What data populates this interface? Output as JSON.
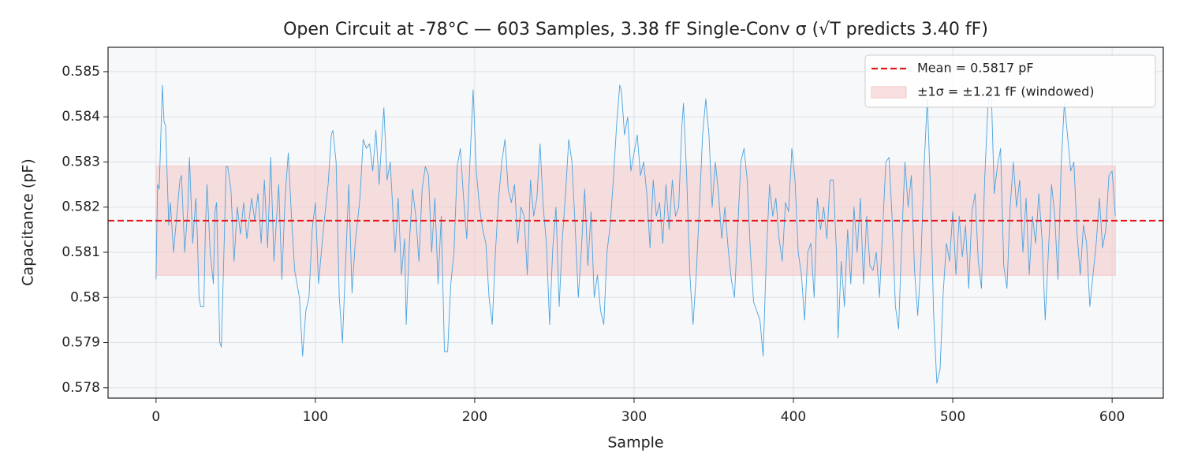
{
  "chart_data": {
    "type": "line",
    "title": "Open Circuit at -78°C — 603 Samples, 3.38 fF Single-Conv σ (√T predicts 3.40 fF)",
    "xlabel": "Sample",
    "ylabel": "Capacitance (pF)",
    "xlim": [
      -30.1,
      632.1
    ],
    "ylim": [
      0.57777,
      0.58554
    ],
    "xticks": [
      0,
      100,
      200,
      300,
      400,
      500,
      600
    ],
    "yticks": [
      0.578,
      0.579,
      0.58,
      0.581,
      0.582,
      0.583,
      0.584,
      0.585
    ],
    "grid": true,
    "legend": "upper right",
    "x": [
      0,
      1,
      2,
      4,
      5,
      6,
      8,
      9,
      11,
      13,
      15,
      16,
      18,
      20,
      21,
      23,
      25,
      26,
      27,
      28,
      30,
      31,
      32,
      34,
      36,
      37,
      38,
      40,
      41,
      43,
      44,
      45,
      47,
      49,
      51,
      53,
      55,
      57,
      60,
      62,
      64,
      66,
      68,
      70,
      72,
      74,
      77,
      79,
      81,
      83,
      85,
      87,
      90,
      92,
      94,
      96,
      98,
      100,
      102,
      105,
      108,
      110,
      111,
      113,
      115,
      117,
      119,
      121,
      123,
      125,
      128,
      130,
      132,
      134,
      136,
      138,
      140,
      142,
      143,
      145,
      147,
      150,
      152,
      154,
      156,
      157,
      159,
      161,
      163,
      165,
      167,
      169,
      171,
      173,
      175,
      177,
      179,
      181,
      183,
      185,
      187,
      189,
      191,
      193,
      195,
      197,
      199,
      201,
      203,
      205,
      207,
      209,
      211,
      213,
      215,
      217,
      219,
      221,
      223,
      225,
      227,
      229,
      231,
      233,
      235,
      237,
      239,
      241,
      243,
      245,
      247,
      249,
      251,
      253,
      255,
      257,
      259,
      261,
      263,
      265,
      267,
      269,
      271,
      273,
      275,
      277,
      279,
      281,
      283,
      285,
      287,
      289,
      291,
      292,
      294,
      296,
      298,
      300,
      302,
      304,
      306,
      308,
      310,
      312,
      314,
      316,
      318,
      320,
      322,
      324,
      326,
      328,
      330,
      331,
      333,
      335,
      337,
      339,
      341,
      343,
      345,
      347,
      349,
      351,
      353,
      355,
      357,
      359,
      361,
      363,
      365,
      367,
      369,
      371,
      373,
      375,
      377,
      379,
      381,
      383,
      385,
      387,
      389,
      391,
      393,
      395,
      397,
      399,
      401,
      403,
      405,
      407,
      409,
      411,
      413,
      415,
      417,
      419,
      421,
      423,
      425,
      427,
      428,
      430,
      432,
      434,
      436,
      438,
      440,
      442,
      444,
      446,
      448,
      450,
      452,
      454,
      456,
      458,
      460,
      462,
      464,
      466,
      468,
      470,
      472,
      474,
      476,
      478,
      480,
      482,
      484,
      486,
      488,
      490,
      492,
      494,
      496,
      498,
      500,
      502,
      504,
      506,
      508,
      510,
      512,
      514,
      516,
      518,
      520,
      522,
      524,
      526,
      528,
      530,
      532,
      534,
      536,
      538,
      540,
      542,
      544,
      546,
      548,
      550,
      552,
      554,
      556,
      558,
      560,
      562,
      564,
      566,
      568,
      570,
      572,
      574,
      576,
      578,
      580,
      582,
      584,
      586,
      588,
      590,
      592,
      594,
      596,
      598,
      600,
      602
    ],
    "series": [
      {
        "color": "#4aa3df",
        "values": [
          0.5804,
          0.5825,
          0.5824,
          0.5847,
          0.5839,
          0.5838,
          0.5816,
          0.5821,
          0.581,
          0.5818,
          0.5826,
          0.5827,
          0.581,
          0.582,
          0.5831,
          0.5812,
          0.5822,
          0.5813,
          0.58,
          0.5798,
          0.5798,
          0.5815,
          0.5825,
          0.581,
          0.5803,
          0.5819,
          0.5821,
          0.579,
          0.5789,
          0.5815,
          0.5829,
          0.5829,
          0.5824,
          0.5808,
          0.582,
          0.5814,
          0.5821,
          0.5813,
          0.5822,
          0.5817,
          0.5823,
          0.5812,
          0.5826,
          0.5811,
          0.5831,
          0.5808,
          0.5825,
          0.5804,
          0.5822,
          0.5832,
          0.5818,
          0.5806,
          0.58,
          0.5787,
          0.5797,
          0.58,
          0.5815,
          0.5821,
          0.5803,
          0.5815,
          0.5825,
          0.5836,
          0.5837,
          0.583,
          0.58,
          0.579,
          0.5808,
          0.5825,
          0.5801,
          0.5812,
          0.5822,
          0.5835,
          0.5833,
          0.5834,
          0.5828,
          0.5837,
          0.5825,
          0.5837,
          0.5842,
          0.5826,
          0.583,
          0.581,
          0.5822,
          0.5805,
          0.5813,
          0.5794,
          0.5812,
          0.5824,
          0.5818,
          0.5808,
          0.5824,
          0.5829,
          0.5827,
          0.581,
          0.5822,
          0.5803,
          0.5818,
          0.5788,
          0.5788,
          0.5803,
          0.581,
          0.5829,
          0.5833,
          0.5822,
          0.5813,
          0.583,
          0.5846,
          0.5828,
          0.582,
          0.5815,
          0.5812,
          0.58,
          0.5794,
          0.581,
          0.5822,
          0.583,
          0.5835,
          0.5824,
          0.5821,
          0.5825,
          0.5812,
          0.582,
          0.5818,
          0.5805,
          0.5826,
          0.5818,
          0.5822,
          0.5834,
          0.582,
          0.5812,
          0.5794,
          0.5811,
          0.582,
          0.5798,
          0.5813,
          0.5823,
          0.5835,
          0.583,
          0.5816,
          0.58,
          0.5811,
          0.5824,
          0.5807,
          0.5819,
          0.58,
          0.5805,
          0.5797,
          0.5794,
          0.581,
          0.5816,
          0.5826,
          0.5838,
          0.5847,
          0.5846,
          0.5836,
          0.584,
          0.5828,
          0.5832,
          0.5836,
          0.5827,
          0.583,
          0.5823,
          0.5811,
          0.5826,
          0.5818,
          0.5821,
          0.5812,
          0.5825,
          0.5815,
          0.5826,
          0.5818,
          0.582,
          0.5838,
          0.5843,
          0.5827,
          0.5805,
          0.5794,
          0.5805,
          0.582,
          0.5836,
          0.5844,
          0.5836,
          0.582,
          0.583,
          0.5823,
          0.5813,
          0.582,
          0.5811,
          0.5804,
          0.58,
          0.5815,
          0.583,
          0.5833,
          0.5826,
          0.581,
          0.5799,
          0.5797,
          0.5795,
          0.5787,
          0.5809,
          0.5825,
          0.5818,
          0.5822,
          0.5813,
          0.5808,
          0.5821,
          0.5819,
          0.5833,
          0.5826,
          0.581,
          0.5805,
          0.5795,
          0.581,
          0.5812,
          0.58,
          0.5822,
          0.5815,
          0.582,
          0.5813,
          0.5826,
          0.5826,
          0.581,
          0.5791,
          0.5808,
          0.5798,
          0.5815,
          0.5803,
          0.582,
          0.581,
          0.5822,
          0.5803,
          0.5818,
          0.5807,
          0.5806,
          0.581,
          0.58,
          0.5815,
          0.583,
          0.5831,
          0.5817,
          0.5798,
          0.5793,
          0.5813,
          0.583,
          0.582,
          0.5827,
          0.5806,
          0.5796,
          0.5808,
          0.5829,
          0.5844,
          0.5824,
          0.5796,
          0.5781,
          0.5784,
          0.5801,
          0.5812,
          0.5808,
          0.5819,
          0.5805,
          0.5818,
          0.5809,
          0.5816,
          0.5802,
          0.5819,
          0.5823,
          0.5808,
          0.5802,
          0.5826,
          0.5842,
          0.5848,
          0.5823,
          0.5829,
          0.5833,
          0.5807,
          0.5802,
          0.582,
          0.583,
          0.582,
          0.5826,
          0.581,
          0.5822,
          0.5805,
          0.5818,
          0.5812,
          0.5823,
          0.5813,
          0.5795,
          0.581,
          0.5825,
          0.5818,
          0.5804,
          0.5829,
          0.5843,
          0.5836,
          0.5828,
          0.583,
          0.5814,
          0.5805,
          0.5816,
          0.5812,
          0.5798,
          0.5805,
          0.5812,
          0.5822,
          0.5811,
          0.5815,
          0.5827,
          0.5828,
          0.5818
        ]
      }
    ],
    "mean_line": {
      "name": "Mean = 0.5817 pF",
      "value": 0.5817,
      "color": "#e41a1c"
    },
    "band": {
      "name": "±1σ = ±1.21 fF (windowed)",
      "low": 0.58049,
      "high": 0.58291,
      "xrange": [
        0,
        602
      ],
      "color": "#f4c6c6"
    }
  }
}
